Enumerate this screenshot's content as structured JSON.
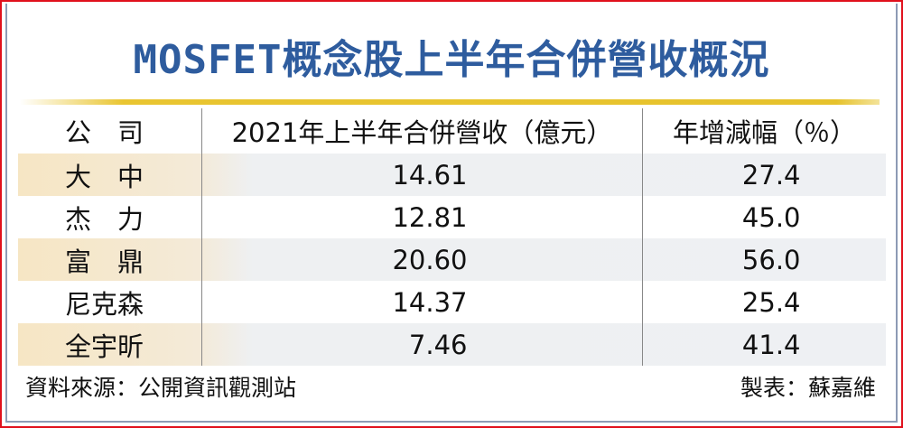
{
  "title": "MOSFET概念股上半年合併營收概況",
  "chart_data": {
    "type": "table",
    "title": "MOSFET概念股上半年合併營收概況",
    "columns": [
      "公　司",
      "2021年上半年合併營收（億元）",
      "年增減幅（％）"
    ],
    "rows": [
      {
        "company": "大　中",
        "revenue": "14.61",
        "yoy": "27.4"
      },
      {
        "company": "杰　力",
        "revenue": "12.81",
        "yoy": "45.0"
      },
      {
        "company": "富　鼎",
        "revenue": "20.60",
        "yoy": "56.0"
      },
      {
        "company": "尼克森",
        "revenue": "14.37",
        "yoy": "25.4"
      },
      {
        "company": "全宇昕",
        "revenue": "7.46",
        "yoy": "41.4"
      }
    ]
  },
  "footer": {
    "source": "資料來源：公開資訊觀測站",
    "author": "製表：蘇嘉維"
  },
  "colors": {
    "title": "#2e5c9e",
    "rule": "#e6c22c",
    "border": "#e0101c"
  }
}
